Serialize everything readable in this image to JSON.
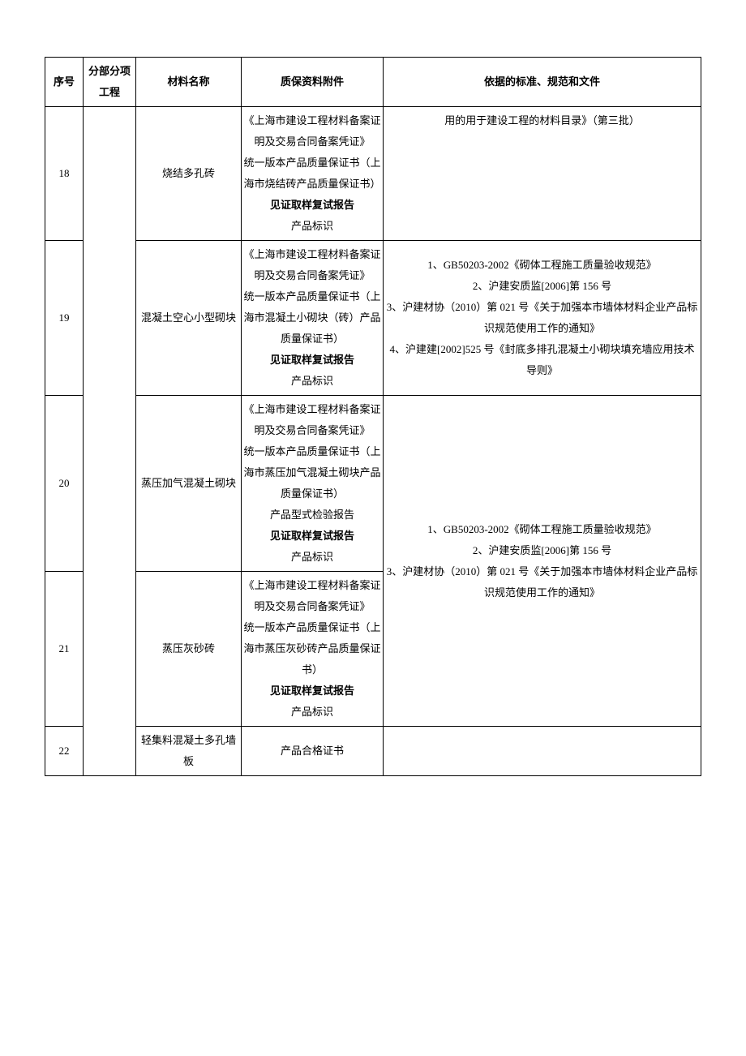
{
  "headers": {
    "seq": "序号",
    "category": "分部分项工程",
    "material": "材料名称",
    "attachment": "质保资料附件",
    "basis": "依据的标准、规范和文件"
  },
  "rows": [
    {
      "seq": "18",
      "material": "烧结多孔砖",
      "attachment_lines": [
        {
          "text": "《上海市建设工程材料备案证明及交易合同备案凭证》",
          "bold": false
        },
        {
          "text": "统一版本产品质量保证书（上海市烧结砖产品质量保证书）",
          "bold": false
        },
        {
          "text": "见证取样复试报告",
          "bold": true
        },
        {
          "text": "产品标识",
          "bold": false
        }
      ],
      "basis_lines": [
        {
          "text": "用的用于建设工程的材料目录》（第三批）",
          "bold": false
        }
      ],
      "basis_valign": "top"
    },
    {
      "seq": "19",
      "material": "混凝土空心小型砌块",
      "attachment_lines": [
        {
          "text": "《上海市建设工程材料备案证明及交易合同备案凭证》",
          "bold": false
        },
        {
          "text": "统一版本产品质量保证书（上海市混凝土小砌块（砖）产品质量保证书）",
          "bold": false
        },
        {
          "text": "见证取样复试报告",
          "bold": true
        },
        {
          "text": "产品标识",
          "bold": false
        }
      ],
      "basis_lines": [
        {
          "text": "1、GB50203-2002《砌体工程施工质量验收规范》",
          "bold": false
        },
        {
          "text": "2、沪建安质监[2006]第 156 号",
          "bold": false
        },
        {
          "text": "3、沪建材协（2010）第 021 号《关于加强本市墙体材料企业产品标识规范使用工作的通知》",
          "bold": false
        },
        {
          "text": "4、沪建建[2002]525 号《封底多排孔混凝土小砌块填充墙应用技术导则》",
          "bold": false
        }
      ],
      "basis_valign": "middle"
    },
    {
      "seq": "20",
      "material": "蒸压加气混凝土砌块",
      "attachment_lines": [
        {
          "text": "《上海市建设工程材料备案证明及交易合同备案凭证》",
          "bold": false
        },
        {
          "text": "统一版本产品质量保证书（上海市蒸压加气混凝土砌块产品质量保证书）",
          "bold": false
        },
        {
          "text": "产品型式检验报告",
          "bold": false
        },
        {
          "text": "见证取样复试报告",
          "bold": true
        },
        {
          "text": "产品标识",
          "bold": false
        }
      ],
      "basis_rowspan": 2,
      "basis_lines": [
        {
          "text": "1、GB50203-2002《砌体工程施工质量验收规范》",
          "bold": false
        },
        {
          "text": "2、沪建安质监[2006]第 156 号",
          "bold": false
        },
        {
          "text": "3、沪建材协（2010）第 021 号《关于加强本市墙体材料企业产品标识规范使用工作的通知》",
          "bold": false
        }
      ],
      "basis_valign": "middle"
    },
    {
      "seq": "21",
      "material": "蒸压灰砂砖",
      "attachment_lines": [
        {
          "text": "《上海市建设工程材料备案证明及交易合同备案凭证》",
          "bold": false
        },
        {
          "text": "统一版本产品质量保证书（上海市蒸压灰砂砖产品质量保证书）",
          "bold": false
        },
        {
          "text": "见证取样复试报告",
          "bold": true
        },
        {
          "text": "产品标识",
          "bold": false
        }
      ]
    },
    {
      "seq": "22",
      "material": "轻集料混凝土多孔墙板",
      "attachment_lines": [
        {
          "text": "产品合格证书",
          "bold": false
        }
      ],
      "basis_lines": [],
      "basis_valign": "middle"
    }
  ],
  "category_rowspan": 5
}
